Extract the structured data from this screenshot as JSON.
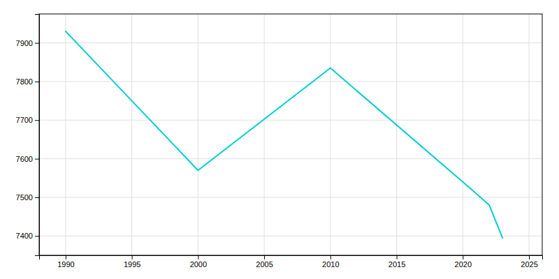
{
  "chart_data": {
    "type": "line",
    "x": [
      1990,
      2000,
      2010,
      2020,
      2022,
      2023
    ],
    "values": [
      7930,
      7570,
      7835,
      7540,
      7480,
      7395
    ],
    "color": "#00CED1",
    "xlim": [
      1988,
      2026
    ],
    "ylim": [
      7350,
      7975
    ],
    "xticks": [
      1990,
      1995,
      2000,
      2005,
      2010,
      2015,
      2020,
      2025
    ],
    "yticks": [
      7400,
      7500,
      7600,
      7700,
      7800,
      7900
    ],
    "grid": true
  }
}
